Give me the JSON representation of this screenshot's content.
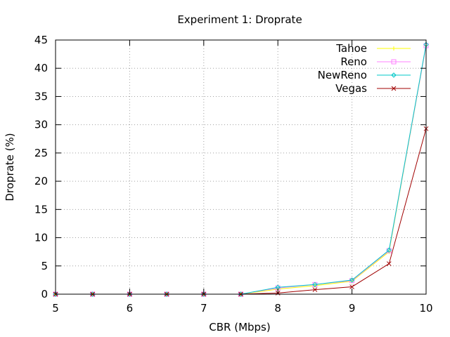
{
  "chart_data": {
    "type": "line",
    "title": "Experiment 1: Droprate",
    "xlabel": "CBR (Mbps)",
    "ylabel": "Droprate (%)",
    "xlim": [
      5,
      10
    ],
    "ylim": [
      0,
      45
    ],
    "x_ticks": [
      5,
      6,
      7,
      8,
      9,
      10
    ],
    "y_ticks": [
      0,
      5,
      10,
      15,
      20,
      25,
      30,
      35,
      40,
      45
    ],
    "grid": true,
    "legend_position": "top-right",
    "x": [
      5,
      5.5,
      6,
      6.5,
      7,
      7.5,
      8,
      8.5,
      9,
      9.5,
      10
    ],
    "series": [
      {
        "name": "Tahoe",
        "color": "#ffff00",
        "marker": "plus",
        "values": [
          0,
          0,
          0,
          0,
          0,
          0,
          0.9,
          1.5,
          2.3,
          7.5,
          44.0
        ]
      },
      {
        "name": "Reno",
        "color": "#ff80ff",
        "marker": "square",
        "values": [
          0,
          0,
          0,
          0,
          0,
          0,
          1.1,
          1.7,
          2.4,
          7.7,
          44.0
        ]
      },
      {
        "name": "NewReno",
        "color": "#00c8c8",
        "marker": "diamond",
        "values": [
          0,
          0,
          0,
          0,
          0,
          0,
          1.2,
          1.7,
          2.5,
          7.8,
          44.2
        ]
      },
      {
        "name": "Vegas",
        "color": "#a00000",
        "marker": "cross",
        "values": [
          0,
          0,
          0,
          0,
          0,
          0,
          0.2,
          0.8,
          1.3,
          5.4,
          29.3
        ]
      }
    ]
  }
}
